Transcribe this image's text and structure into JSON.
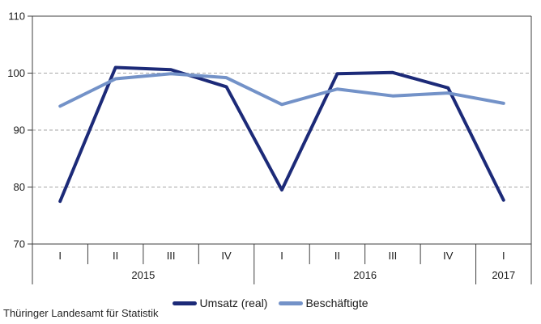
{
  "source": "Thüringer Landesamt für Statistik",
  "colors": {
    "axis": "#3f3f3f",
    "grid": "#a6a6a6",
    "text": "#1a1a1a",
    "background": "#ffffff",
    "series_dark": "#1c2a78",
    "series_light": "#7392c8"
  },
  "chart_data": {
    "type": "line",
    "title": "",
    "xlabel": "",
    "ylabel": "",
    "ylim": [
      70,
      110
    ],
    "y_ticks": [
      110,
      100,
      90,
      80,
      70
    ],
    "grid_values": [
      100,
      90,
      80
    ],
    "grid_style": "dashed-horizontal",
    "legend_position": "bottom-center",
    "x_categories": [
      "I",
      "II",
      "III",
      "IV",
      "I",
      "II",
      "III",
      "IV",
      "I"
    ],
    "year_groups": [
      {
        "label": "2015",
        "span": 4
      },
      {
        "label": "2016",
        "span": 4
      },
      {
        "label": "2017",
        "span": 1
      }
    ],
    "series": [
      {
        "name": "Umsatz (real)",
        "color": "#1c2a78",
        "values": [
          77.5,
          101.0,
          100.6,
          97.6,
          79.5,
          99.9,
          100.1,
          97.4,
          77.7
        ]
      },
      {
        "name": "Beschäftigte",
        "color": "#7392c8",
        "values": [
          94.2,
          99.0,
          99.9,
          99.2,
          94.5,
          97.2,
          96.0,
          96.5,
          94.7
        ]
      }
    ]
  }
}
